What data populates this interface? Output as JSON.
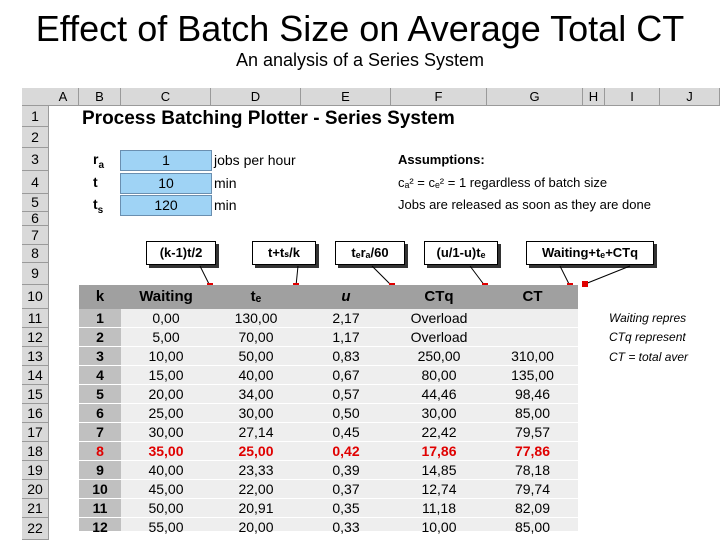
{
  "slide": {
    "title": "Effect of Batch Size on Average Total CT",
    "subtitle": "An analysis of a Series System"
  },
  "columns": [
    "A",
    "B",
    "C",
    "D",
    "E",
    "F",
    "G",
    "H",
    "I",
    "J"
  ],
  "rows": [
    "1",
    "2",
    "3",
    "4",
    "5",
    "6",
    "7",
    "8",
    "9",
    "10",
    "11",
    "12",
    "13",
    "14",
    "15",
    "16",
    "17",
    "18",
    "19",
    "20",
    "21",
    "22"
  ],
  "sheet_title": "Process Batching Plotter - Series System",
  "params": [
    {
      "label": "r",
      "sub": "a",
      "value": "1",
      "unit": "jobs per hour"
    },
    {
      "label": "t",
      "sub": "",
      "value": "10",
      "unit": "min"
    },
    {
      "label": "t",
      "sub": "s",
      "value": "120",
      "unit": "min"
    }
  ],
  "assumptions": {
    "heading": "Assumptions:",
    "line1": "cₐ² = cₑ² = 1 regardless of batch size",
    "line2": "Jobs are released as soon as they are done"
  },
  "callouts": [
    "(k-1)t/2",
    "t+tₛ/k",
    "tₑrₐ/60",
    "(u/1-u)tₑ",
    "Waiting+tₑ+CTq"
  ],
  "table": {
    "headers": [
      "k",
      "Waiting",
      "tₑ",
      "u",
      "CTq",
      "CT"
    ],
    "rows": [
      [
        "1",
        "0,00",
        "130,00",
        "2,17",
        "Overload",
        ""
      ],
      [
        "2",
        "5,00",
        "70,00",
        "1,17",
        "Overload",
        ""
      ],
      [
        "3",
        "10,00",
        "50,00",
        "0,83",
        "250,00",
        "310,00"
      ],
      [
        "4",
        "15,00",
        "40,00",
        "0,67",
        "80,00",
        "135,00"
      ],
      [
        "5",
        "20,00",
        "34,00",
        "0,57",
        "44,46",
        "98,46"
      ],
      [
        "6",
        "25,00",
        "30,00",
        "0,50",
        "30,00",
        "85,00"
      ],
      [
        "7",
        "30,00",
        "27,14",
        "0,45",
        "22,42",
        "79,57"
      ],
      [
        "8",
        "35,00",
        "25,00",
        "0,42",
        "17,86",
        "77,86"
      ],
      [
        "9",
        "40,00",
        "23,33",
        "0,39",
        "14,85",
        "78,18"
      ],
      [
        "10",
        "45,00",
        "22,00",
        "0,37",
        "12,74",
        "79,74"
      ],
      [
        "11",
        "50,00",
        "20,91",
        "0,35",
        "11,18",
        "82,09"
      ],
      [
        "12",
        "55,00",
        "20,00",
        "0,33",
        "10,00",
        "85,00"
      ]
    ],
    "highlight_row": 7,
    "highlight_color": "#e00000"
  },
  "notes": [
    "Waiting repres",
    "CTq represent",
    "CT = total aver"
  ]
}
